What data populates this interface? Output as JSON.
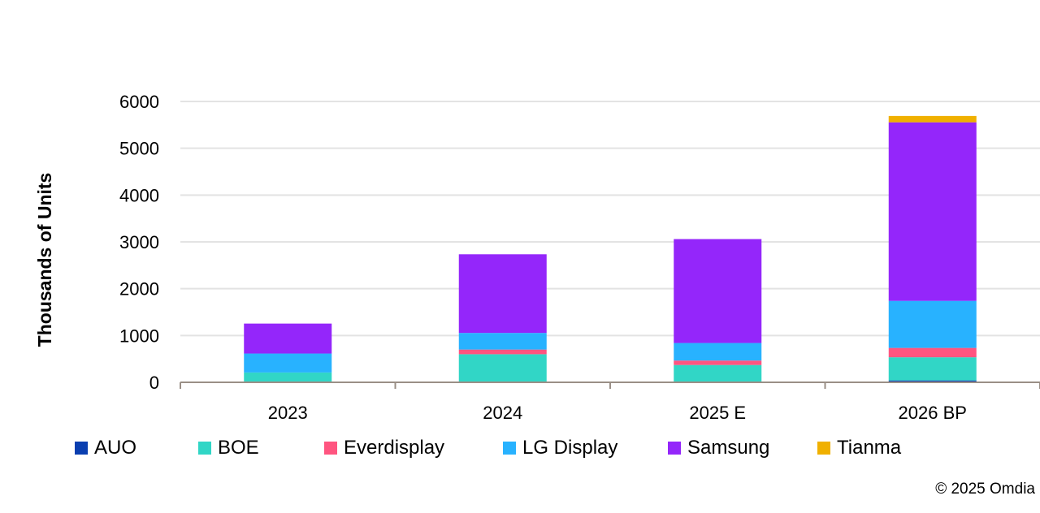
{
  "chart_data": {
    "type": "bar",
    "stacked": true,
    "title": "",
    "xlabel": "",
    "ylabel": "Thousands of Units",
    "ylim": [
      0,
      6000
    ],
    "yticks": [
      0,
      1000,
      2000,
      3000,
      4000,
      5000,
      6000
    ],
    "grid": true,
    "legend_position": "bottom",
    "categories": [
      "2023",
      "2024",
      "2025 E",
      "2026 BP"
    ],
    "series": [
      {
        "name": "AUO",
        "color": "#0A3FB0",
        "values": [
          0,
          0,
          0,
          40
        ]
      },
      {
        "name": "BOE",
        "color": "#31D6C6",
        "values": [
          210,
          600,
          370,
          495
        ]
      },
      {
        "name": "Everdisplay",
        "color": "#FF5580",
        "values": [
          0,
          100,
          95,
          200
        ]
      },
      {
        "name": "LG Display",
        "color": "#28B2FF",
        "values": [
          405,
          355,
          375,
          1005
        ]
      },
      {
        "name": "Samsung",
        "color": "#9426FA",
        "values": [
          640,
          1680,
          2220,
          3815
        ]
      },
      {
        "name": "Tianma",
        "color": "#F0B000",
        "values": [
          0,
          0,
          0,
          135
        ]
      }
    ]
  },
  "copyright": "© 2025 Omdia"
}
